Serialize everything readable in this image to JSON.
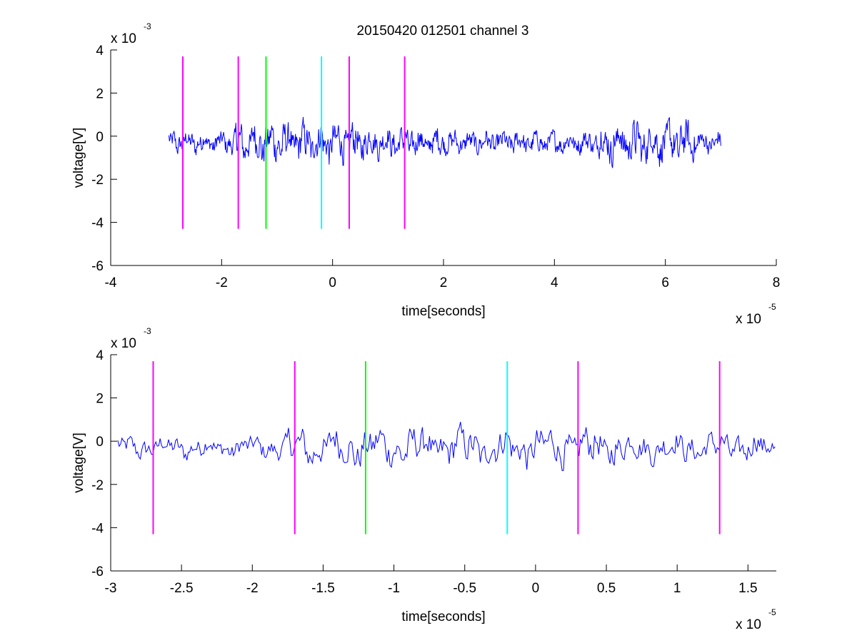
{
  "title": "20150420 012501 channel 3",
  "colors": {
    "signal": "#0000ff",
    "magenta": "#ff00ff",
    "green": "#00ff00",
    "cyan": "#00ffff",
    "axes": "#000000"
  },
  "chart_data": [
    {
      "type": "line",
      "title": "20150420 012501 channel 3",
      "xlabel": "time[seconds]",
      "ylabel": "voltage[V]",
      "x_exponent_label": "x 10",
      "x_exponent": "-5",
      "y_exponent_label": "x 10",
      "y_exponent": "-3",
      "xlim": [
        -4,
        8
      ],
      "ylim": [
        -6,
        4
      ],
      "xticks": [
        -4,
        -2,
        0,
        2,
        4,
        6,
        8
      ],
      "xtick_labels": [
        "-4",
        "-2",
        "0",
        "2",
        "4",
        "6",
        "8"
      ],
      "yticks": [
        -6,
        -4,
        -2,
        0,
        2,
        4
      ],
      "ytick_labels": [
        "-6",
        "-4",
        "-2",
        "0",
        "2",
        "4"
      ],
      "signal_x_range": [
        -2.95,
        7.0
      ],
      "markers": [
        {
          "x": -2.7,
          "color": "magenta",
          "ymin": -4.3,
          "ymax": 3.7
        },
        {
          "x": -1.7,
          "color": "magenta",
          "ymin": -4.3,
          "ymax": 3.7
        },
        {
          "x": -1.2,
          "color": "green",
          "ymin": -4.3,
          "ymax": 3.7
        },
        {
          "x": -0.2,
          "color": "cyan",
          "ymin": -4.3,
          "ymax": 3.7
        },
        {
          "x": 0.3,
          "color": "magenta",
          "ymin": -4.3,
          "ymax": 3.7
        },
        {
          "x": 1.3,
          "color": "magenta",
          "ymin": -4.3,
          "ymax": 3.7
        }
      ],
      "grid": false
    },
    {
      "type": "line",
      "xlabel": "time[seconds]",
      "ylabel": "voltage[V]",
      "x_exponent_label": "x 10",
      "x_exponent": "-5",
      "y_exponent_label": "x 10",
      "y_exponent": "-3",
      "xlim": [
        -3.0,
        1.7
      ],
      "ylim": [
        -6,
        4
      ],
      "xticks": [
        -3,
        -2.5,
        -2,
        -1.5,
        -1,
        -0.5,
        0,
        0.5,
        1,
        1.5
      ],
      "xtick_labels": [
        "-3",
        "-2.5",
        "-2",
        "-1.5",
        "-1",
        "-0.5",
        "0",
        "0.5",
        "1",
        "1.5"
      ],
      "yticks": [
        -6,
        -4,
        -2,
        0,
        2,
        4
      ],
      "ytick_labels": [
        "-6",
        "-4",
        "-2",
        "0",
        "2",
        "4"
      ],
      "signal_x_range": [
        -2.95,
        1.7
      ],
      "markers": [
        {
          "x": -2.7,
          "color": "magenta",
          "ymin": -4.3,
          "ymax": 3.7
        },
        {
          "x": -1.7,
          "color": "magenta",
          "ymin": -4.3,
          "ymax": 3.7
        },
        {
          "x": -1.2,
          "color": "green",
          "ymin": -4.3,
          "ymax": 3.7
        },
        {
          "x": -0.2,
          "color": "cyan",
          "ymin": -4.3,
          "ymax": 3.7
        },
        {
          "x": 0.3,
          "color": "magenta",
          "ymin": -4.3,
          "ymax": 3.7
        },
        {
          "x": 1.3,
          "color": "magenta",
          "ymin": -4.3,
          "ymax": 3.7
        }
      ],
      "grid": false
    }
  ]
}
